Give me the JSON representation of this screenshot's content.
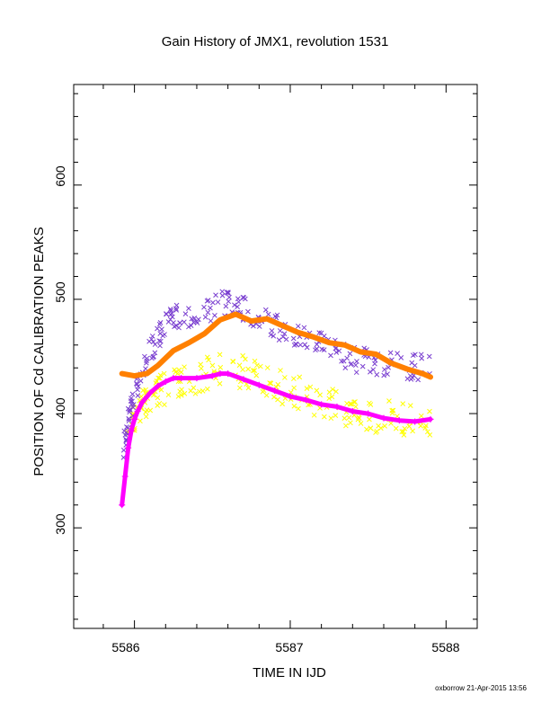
{
  "chart_data": {
    "type": "scatter",
    "title": "Gain History of JMX1, revolution 1531",
    "xlabel": "TIME IN IJD",
    "ylabel": "POSITION OF Cd CALIBRATION PEAKS",
    "xlim": [
      5585.61,
      5588.2
    ],
    "ylim": [
      212,
      688
    ],
    "x_ticks": [
      5586,
      5587,
      5588
    ],
    "x_tick_labels": [
      "5586",
      "5587",
      "5588"
    ],
    "y_ticks": [
      300,
      400,
      500,
      600
    ],
    "y_tick_labels": [
      "300",
      "400",
      "500",
      "600"
    ],
    "grid": false,
    "legend": "none",
    "footer": "oxborrow 21-Apr-2015 13:56",
    "series": [
      {
        "color": "#ff8000",
        "marker": "dense-line",
        "x": [
          5585.92,
          5586.0,
          5586.08,
          5586.15,
          5586.25,
          5586.35,
          5586.45,
          5586.55,
          5586.65,
          5586.75,
          5586.85,
          5586.95,
          5587.05,
          5587.15,
          5587.25,
          5587.35,
          5587.45,
          5587.55,
          5587.65,
          5587.75,
          5587.85,
          5587.9
        ],
        "y": [
          435,
          433,
          435,
          442,
          455,
          462,
          470,
          482,
          487,
          481,
          483,
          477,
          471,
          467,
          462,
          460,
          454,
          452,
          444,
          439,
          435,
          432
        ]
      },
      {
        "color": "#ff00ff",
        "marker": "plus-line",
        "x": [
          5585.92,
          5585.94,
          5585.96,
          5585.98,
          5586.0,
          5586.02,
          5586.05,
          5586.1,
          5586.15,
          5586.2,
          5586.25,
          5586.3,
          5586.4,
          5586.5,
          5586.55,
          5586.6,
          5586.7,
          5586.8,
          5586.9,
          5587.0,
          5587.1,
          5587.2,
          5587.3,
          5587.4,
          5587.5,
          5587.6,
          5587.7,
          5587.8,
          5587.9
        ],
        "y": [
          320,
          345,
          370,
          385,
          395,
          402,
          410,
          418,
          424,
          428,
          431,
          431,
          431,
          433,
          435,
          435,
          430,
          425,
          420,
          415,
          412,
          408,
          406,
          402,
          400,
          396,
          394,
          393,
          395
        ]
      },
      {
        "color": "#7a3fd0",
        "marker": "x-scatter",
        "x": [
          5585.93,
          5585.95,
          5585.97,
          5586.0,
          5586.05,
          5586.1,
          5586.15,
          5586.2,
          5586.25,
          5586.3,
          5586.4,
          5586.5,
          5586.6,
          5586.65,
          5586.7,
          5586.8,
          5586.9,
          5587.0,
          5587.1,
          5587.2,
          5587.3,
          5587.4,
          5587.5,
          5587.6,
          5587.7,
          5587.8,
          5587.9
        ],
        "y": [
          370,
          385,
          400,
          415,
          435,
          455,
          465,
          475,
          482,
          485,
          490,
          493,
          496,
          495,
          490,
          484,
          478,
          472,
          466,
          460,
          452,
          448,
          446,
          445,
          443,
          441,
          438
        ],
        "spread": 12
      },
      {
        "color": "#ffff00",
        "marker": "x-scatter",
        "x": [
          5585.95,
          5586.0,
          5586.05,
          5586.1,
          5586.15,
          5586.2,
          5586.3,
          5586.4,
          5586.5,
          5586.6,
          5586.7,
          5586.8,
          5586.9,
          5587.0,
          5587.1,
          5587.2,
          5587.3,
          5587.4,
          5587.5,
          5587.6,
          5587.7,
          5587.8,
          5587.9
        ],
        "y": [
          380,
          395,
          405,
          412,
          418,
          422,
          427,
          432,
          438,
          440,
          436,
          430,
          425,
          420,
          415,
          410,
          406,
          402,
          399,
          397,
          395,
          394,
          394
        ],
        "spread": 15
      }
    ]
  }
}
